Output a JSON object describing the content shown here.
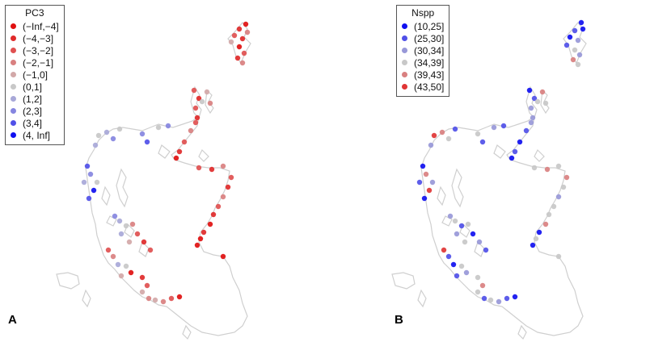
{
  "panels": [
    {
      "id": "A",
      "label": "A",
      "legend": {
        "title": "PC3",
        "items": [
          {
            "label": "(−Inf,−4]",
            "color": "#e01010"
          },
          {
            "label": "(−4,−3]",
            "color": "#e02a2a"
          },
          {
            "label": "(−3,−2]",
            "color": "#e05050"
          },
          {
            "label": "(−2,−1]",
            "color": "#d98080"
          },
          {
            "label": "(−1,0]",
            "color": "#d2a8a8"
          },
          {
            "label": "(0,1]",
            "color": "#c8c8c8"
          },
          {
            "label": "(1,2]",
            "color": "#a8a8d8"
          },
          {
            "label": "(2,3]",
            "color": "#8585e0"
          },
          {
            "label": "(3,4]",
            "color": "#5050e8"
          },
          {
            "label": "(4, Inf]",
            "color": "#1010f0"
          }
        ]
      }
    },
    {
      "id": "B",
      "label": "B",
      "legend": {
        "title": "Nspp",
        "items": [
          {
            "label": "(10,25]",
            "color": "#1010f0"
          },
          {
            "label": "(25,30]",
            "color": "#5050e8"
          },
          {
            "label": "(30,34]",
            "color": "#9898d8"
          },
          {
            "label": "(34,39]",
            "color": "#c8c8c8"
          },
          {
            "label": "(39,43]",
            "color": "#d98080"
          },
          {
            "label": "(43,50]",
            "color": "#e03535"
          }
        ]
      }
    }
  ]
}
